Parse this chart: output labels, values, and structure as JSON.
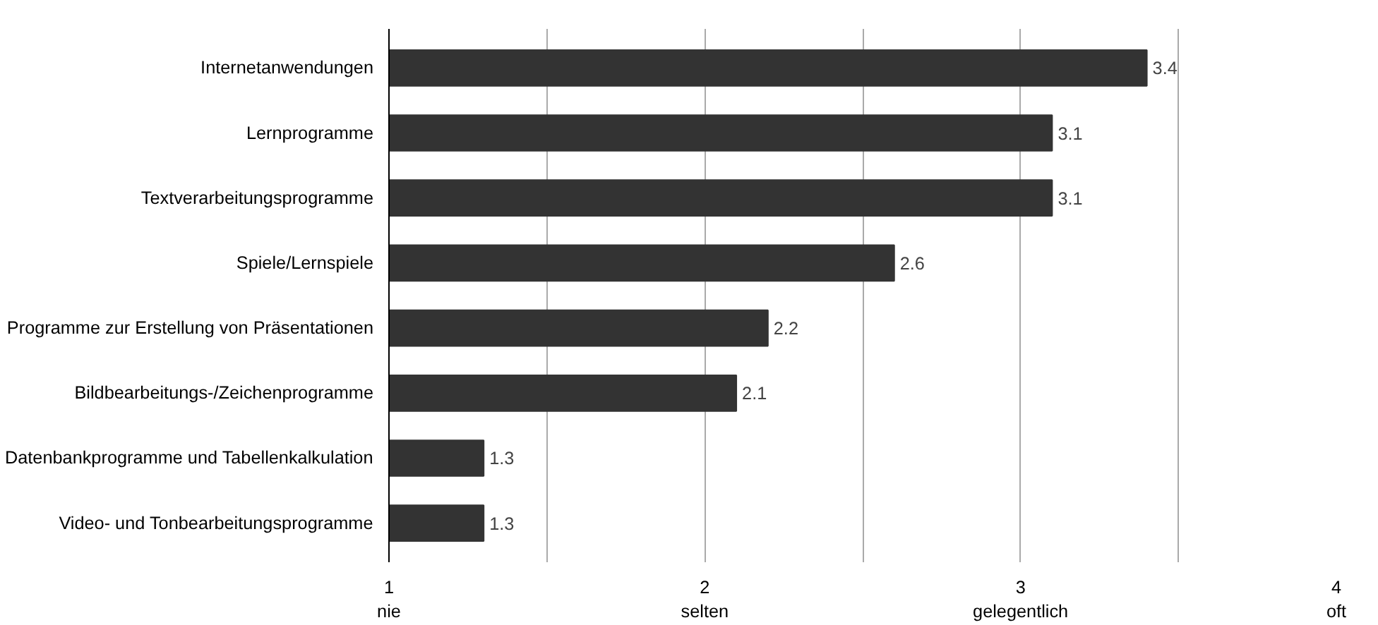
{
  "chart_data": {
    "type": "bar",
    "orientation": "horizontal",
    "categories": [
      "Internetanwendungen",
      "Lernprogramme",
      "Textverarbeitungsprogramme",
      "Spiele/Lernspiele",
      "Programme zur Erstellung von Präsentationen",
      "Bildbearbeitungs-/Zeichenprogramme",
      "Datenbankprogramme und Tabellenkalkulation",
      "Video- und Tonbearbeitungsprogramme"
    ],
    "values": [
      3.4,
      3.1,
      3.1,
      2.6,
      2.2,
      2.1,
      1.3,
      1.3
    ],
    "color": "#333333",
    "xlim": [
      1,
      4
    ],
    "xticks": [
      {
        "value": 1,
        "label": "1\nnie"
      },
      {
        "value": 1.5,
        "label": null
      },
      {
        "value": 2,
        "label": "2\nselten"
      },
      {
        "value": 2.5,
        "label": null
      },
      {
        "value": 3,
        "label": "3\ngelegentlich"
      },
      {
        "value": 3.5,
        "label": null
      },
      {
        "value": 4,
        "label": "4\noft"
      }
    ],
    "grid": "x",
    "data_labels": true
  }
}
